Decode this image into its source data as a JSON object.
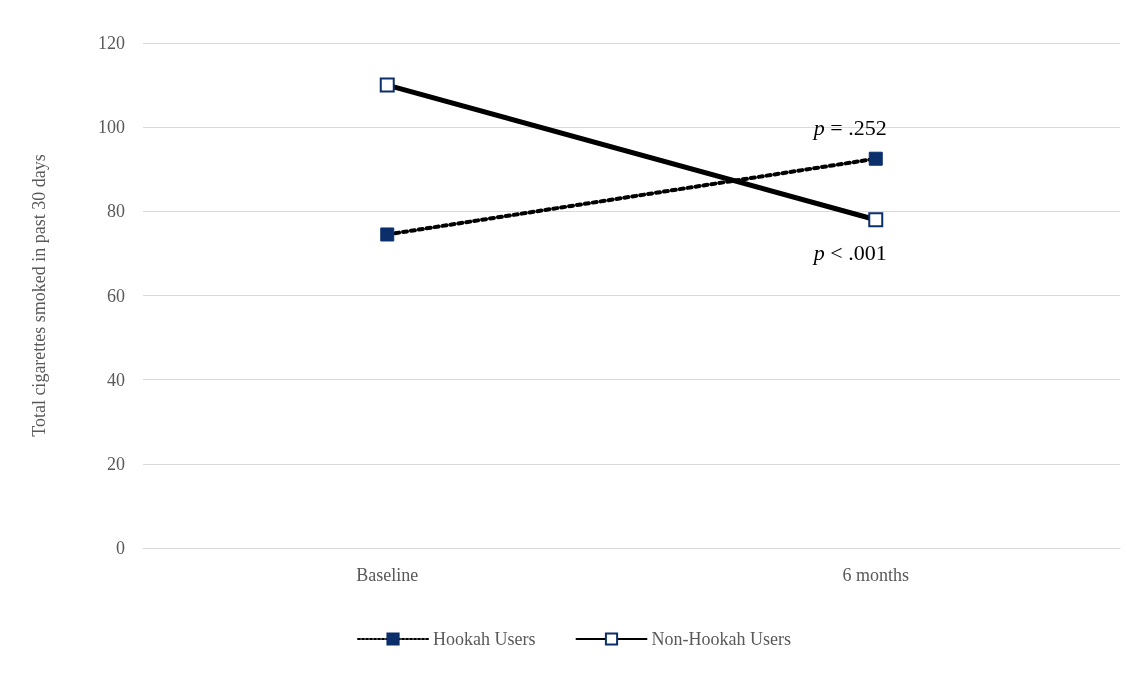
{
  "chart_data": {
    "type": "line",
    "ylabel": "Total cigarettes smoked in past 30 days",
    "categories": [
      "Baseline",
      "6 months"
    ],
    "series": [
      {
        "name": "Hookah Users",
        "color": "#000000",
        "values": [
          74.5,
          92.5
        ],
        "line_style": "dotted"
      },
      {
        "name": "Non-Hookah Users",
        "color": "#000000",
        "values": [
          110,
          78
        ],
        "line_style": "solid"
      }
    ],
    "ylim": [
      0,
      120
    ],
    "yticks": [
      0,
      20,
      40,
      60,
      80,
      100,
      120
    ],
    "grid": "y",
    "legend": "bottom",
    "marker": "square",
    "annotations": [
      {
        "text": "p = .252",
        "x": "6 months",
        "y": 92.5
      },
      {
        "text": "p < .001",
        "x": "6 months",
        "y": 78
      }
    ]
  }
}
